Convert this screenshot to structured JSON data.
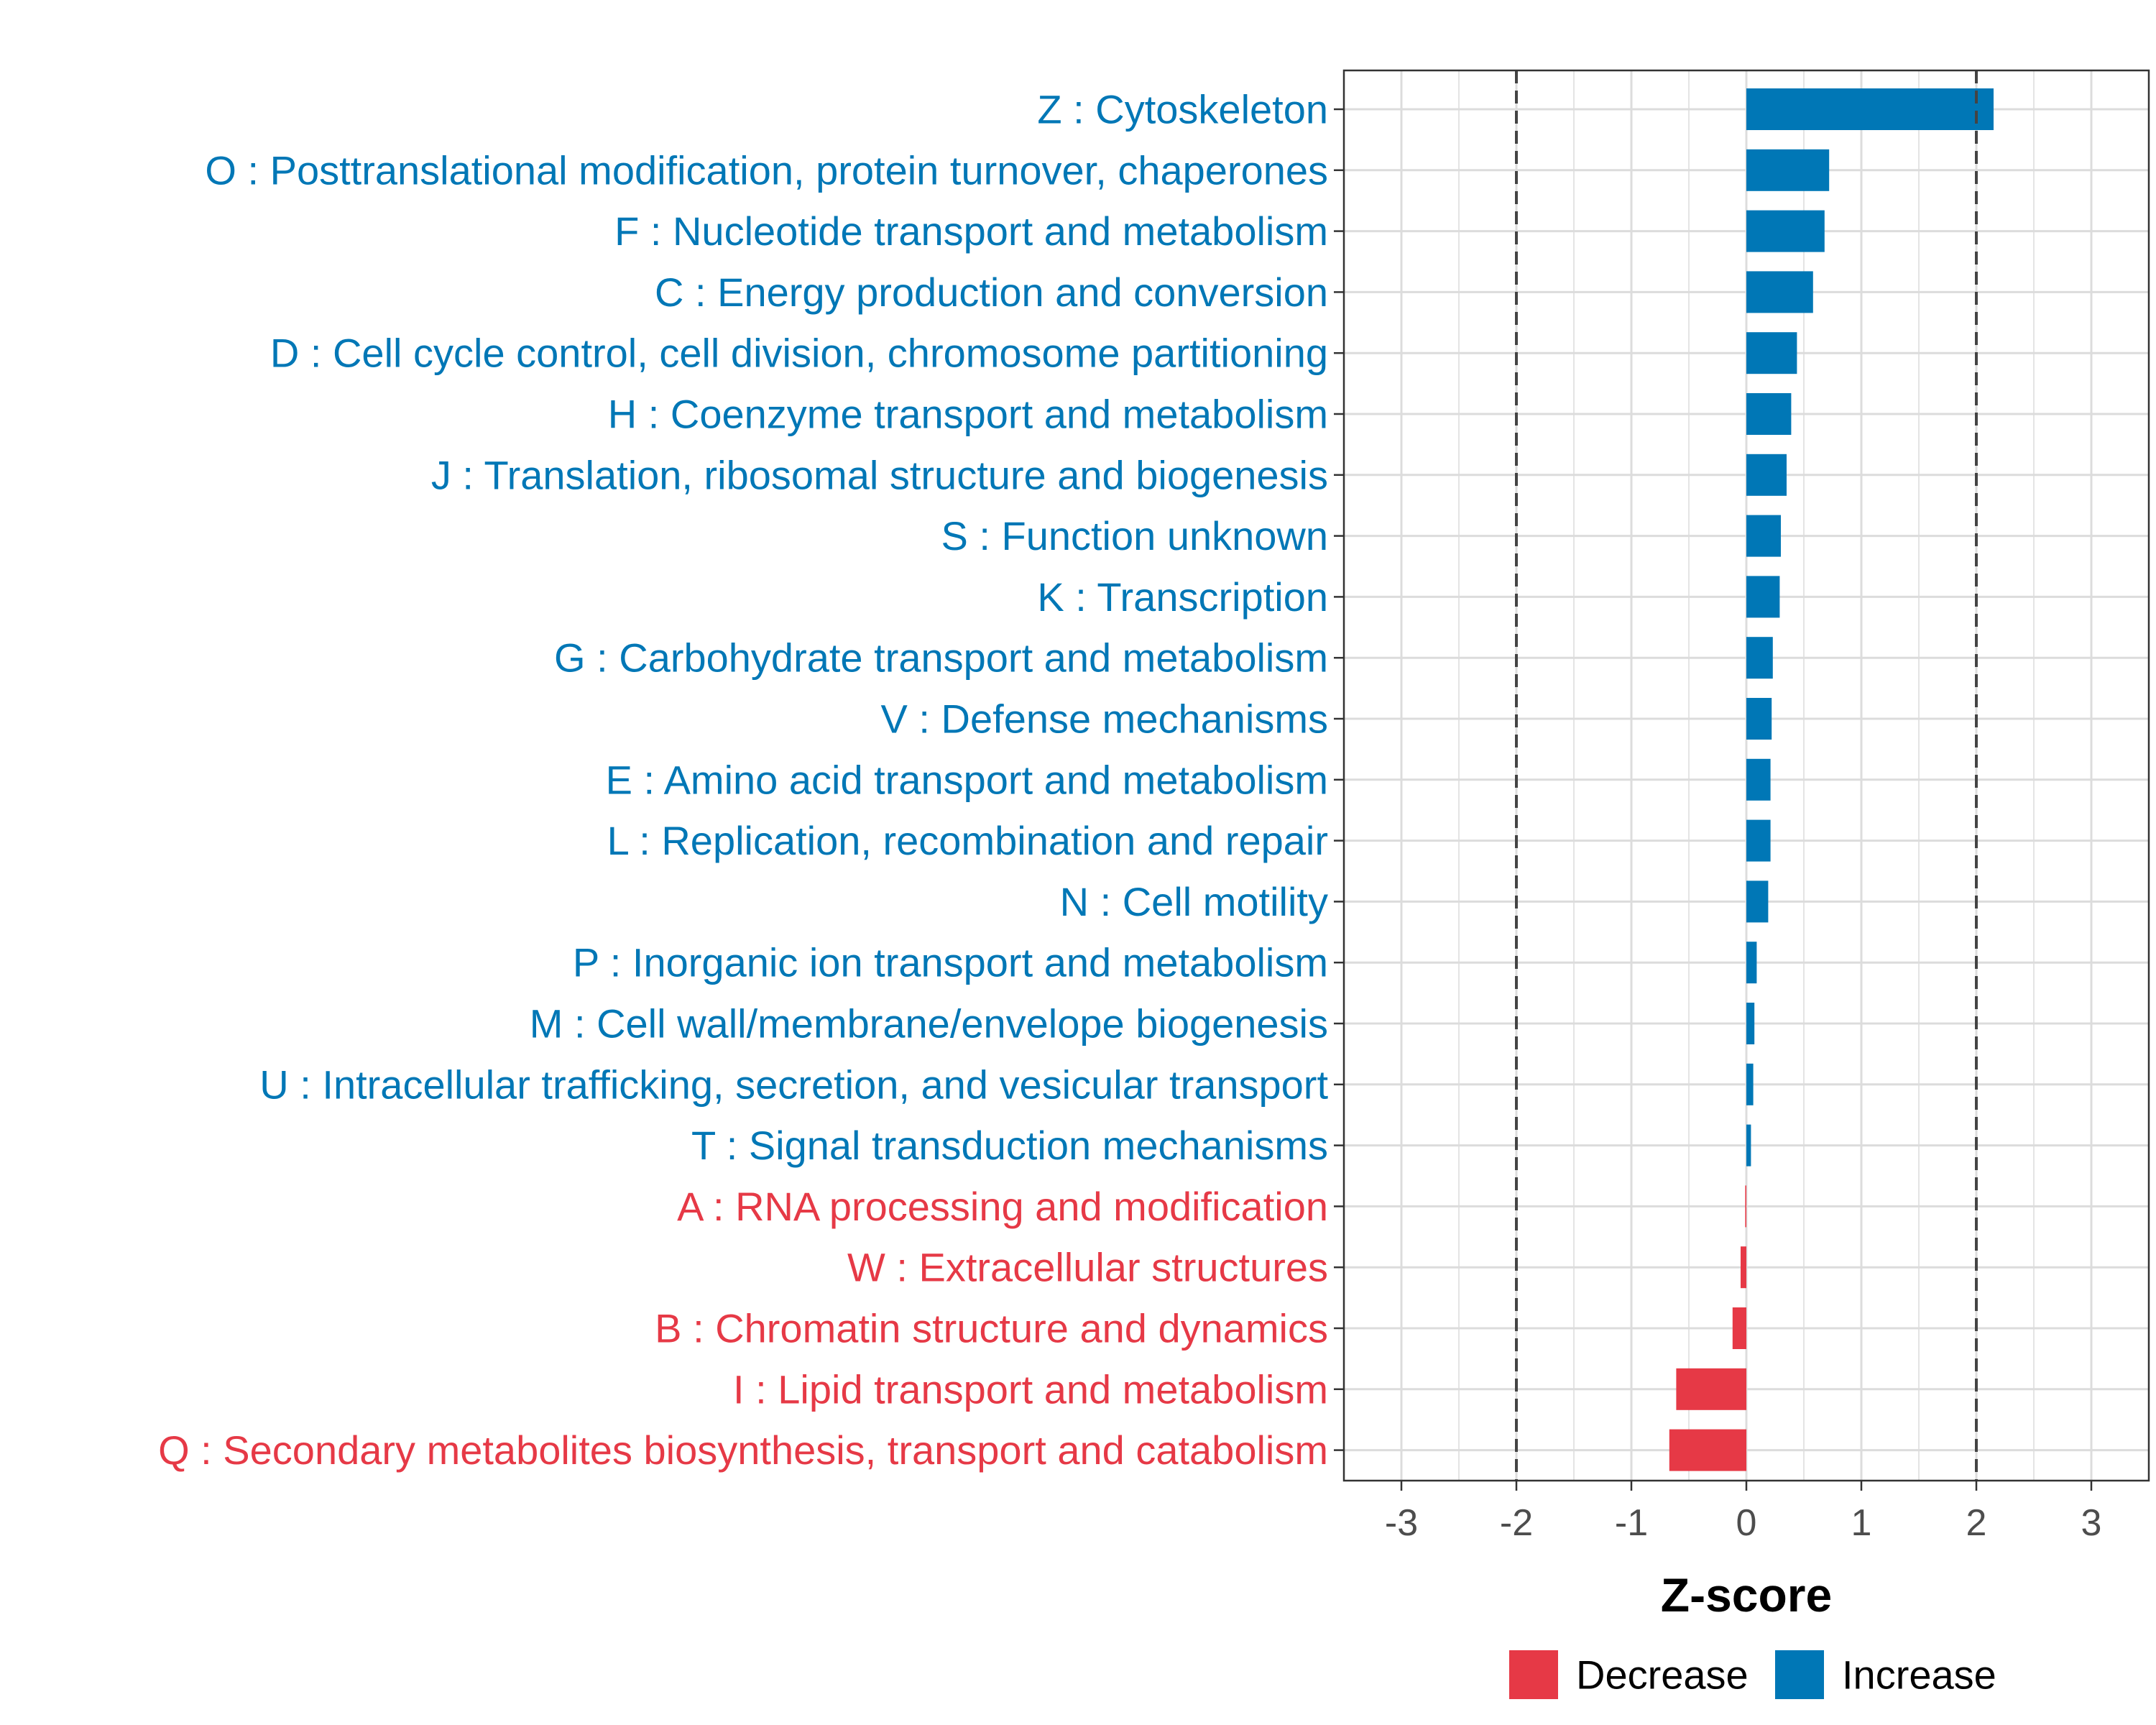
{
  "chart_data": {
    "type": "bar",
    "orientation": "horizontal",
    "title": "",
    "xlabel": "Z-score",
    "ylabel": "",
    "xlim": [
      -3.5,
      3.5
    ],
    "xticks": [
      -3,
      -2,
      -1,
      0,
      1,
      2,
      3
    ],
    "xtick_labels": [
      "-3",
      "-2",
      "-1",
      "0",
      "1",
      "2",
      "3"
    ],
    "threshold_lines": [
      -2,
      2
    ],
    "grid": true,
    "legend_position": "bottom",
    "legend": [
      {
        "name": "Decrease",
        "color": "#E63946"
      },
      {
        "name": "Increase",
        "color": "#0077B6"
      }
    ],
    "categories": [
      "Z : Cytoskeleton",
      "O : Posttranslational modification, protein turnover, chaperones",
      "F : Nucleotide transport and metabolism",
      "C : Energy production and conversion",
      "D : Cell cycle control, cell division, chromosome partitioning",
      "H : Coenzyme transport and metabolism",
      "J : Translation, ribosomal structure and biogenesis",
      "S : Function unknown",
      "K : Transcription",
      "G : Carbohydrate transport and metabolism",
      "V : Defense mechanisms",
      "E : Amino acid transport and metabolism",
      "L : Replication, recombination and repair",
      "N : Cell motility",
      "P : Inorganic ion transport and metabolism",
      "M : Cell wall/membrane/envelope biogenesis",
      "U : Intracellular trafficking, secretion, and vesicular transport",
      "T : Signal transduction mechanisms",
      "A : RNA processing and modification",
      "W : Extracellular structures",
      "B : Chromatin structure and dynamics",
      "I : Lipid transport and metabolism",
      "Q : Secondary metabolites biosynthesis, transport and catabolism"
    ],
    "values": [
      2.15,
      0.72,
      0.68,
      0.58,
      0.44,
      0.39,
      0.35,
      0.3,
      0.29,
      0.23,
      0.22,
      0.21,
      0.21,
      0.19,
      0.09,
      0.07,
      0.06,
      0.04,
      -0.01,
      -0.05,
      -0.12,
      -0.61,
      -0.67
    ]
  }
}
